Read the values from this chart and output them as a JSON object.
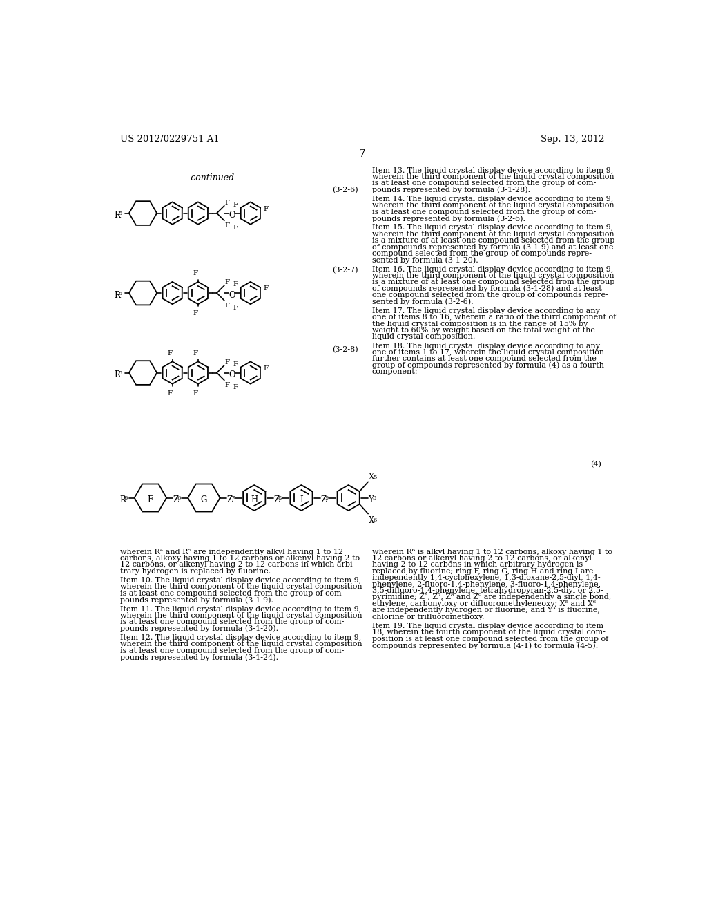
{
  "bg_color": "#ffffff",
  "header_left": "US 2012/0229751 A1",
  "header_right": "Sep. 13, 2012",
  "page_number": "7",
  "continued_label": "-continued",
  "right_text_col": [
    "Item 13. The liquid crystal display device according to item 9,",
    "wherein the third component of the liquid crystal composition",
    "is at least one compound selected from the group of com-",
    "pounds represented by formula (3-1-28).",
    "",
    "Item 14. The liquid crystal display device according to item 9,",
    "wherein the third component of the liquid crystal composition",
    "is at least one compound selected from the group of com-",
    "pounds represented by formula (3-2-6).",
    "",
    "Item 15. The liquid crystal display device according to item 9,",
    "wherein the third component of the liquid crystal composition",
    "is a mixture of at least one compound selected from the group",
    "of compounds represented by formula (3-1-9) and at least one",
    "compound selected from the group of compounds repre-",
    "sented by formula (3-1-20).",
    "",
    "Item 16. The liquid crystal display device according to item 9,",
    "wherein the third component of the liquid crystal composition",
    "is a mixture of at least one compound selected from the group",
    "of compounds represented by formula (3-1-28) and at least",
    "one compound selected from the group of compounds repre-",
    "sented by formula (3-2-6).",
    "",
    "Item 17. The liquid crystal display device according to any",
    "one of items 8 to 16, wherein a ratio of the third component of",
    "the liquid crystal composition is in the range of 15% by",
    "weight to 60% by weight based on the total weight of the",
    "liquid crystal composition.",
    "",
    "Item 18. The liquid crystal display device according to any",
    "one of items 1 to 17, wherein the liquid crystal composition",
    "further contains at least one compound selected from the",
    "group of compounds represented by formula (4) as a fourth",
    "component:"
  ],
  "left_text_col": [
    "wherein R⁴ and R⁵ are independently alkyl having 1 to 12",
    "carbons, alkoxy having 1 to 12 carbons or alkenyl having 2 to",
    "12 carbons, or alkenyl having 2 to 12 carbons in which arbi-",
    "trary hydrogen is replaced by fluorine.",
    "",
    "Item 10. The liquid crystal display device according to item 9,",
    "wherein the third component of the liquid crystal composition",
    "is at least one compound selected from the group of com-",
    "pounds represented by formula (3-1-9).",
    "",
    "Item 11. The liquid crystal display device according to item 9,",
    "wherein the third component of the liquid crystal composition",
    "is at least one compound selected from the group of com-",
    "pounds represented by formula (3-1-20).",
    "",
    "Item 12. The liquid crystal display device according to item 9,",
    "wherein the third component of the liquid crystal composition",
    "is at least one compound selected from the group of com-",
    "pounds represented by formula (3-1-24)."
  ],
  "right_text_col2": [
    "wherein R⁶ is alkyl having 1 to 12 carbons, alkoxy having 1 to",
    "12 carbons or alkenyl having 2 to 12 carbons, or alkenyl",
    "having 2 to 12 carbons in which arbitrary hydrogen is",
    "replaced by fluorine; ring F, ring G, ring H and ring I are",
    "independently 1,4-cyclohexylene, 1,3-dioxane-2,5-diyl, 1,4-",
    "phenylene, 2-fluoro-1,4-phenylene, 3-fluoro-1,4-phenylene,",
    "3,5-difluoro-1,4-phenylene, tetrahydropyran-2,5-diyl or 2,5-",
    "pyrimidine; Z⁶, Z⁷, Z⁸ and Z⁹ are independently a single bond,",
    "ethylene, carbonyloxy or difluoromethyleneoxy; X⁵ and X⁶",
    "are independently hydrogen or fluorine; and Y³ is fluorine,",
    "chlorine or trifluoromethoxy.",
    "",
    "Item 19. The liquid crystal display device according to item",
    "18, wherein the fourth component of the liquid crystal com-",
    "position is at least one compound selected from the group of",
    "compounds represented by formula (4-1) to formula (4-5):"
  ]
}
